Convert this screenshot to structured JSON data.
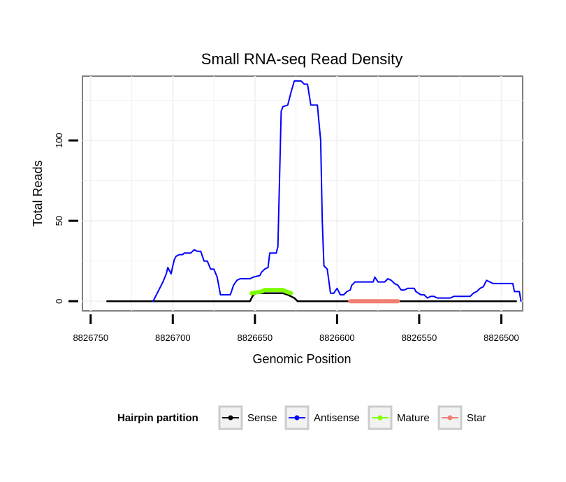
{
  "chart_data": {
    "type": "line",
    "title": "Small RNA-seq Read Density",
    "xlabel": "Genomic Position",
    "ylabel": "Total Reads",
    "xlim": [
      8826755,
      8826487
    ],
    "x_reversed": true,
    "ylim": [
      -6,
      140
    ],
    "x_ticks": [
      8826750,
      8826700,
      8826650,
      8826600,
      8826550,
      8826500
    ],
    "x_tick_labels": [
      "8826750",
      "8826700",
      "8826650",
      "8826600",
      "8826550",
      "8826500"
    ],
    "y_ticks": [
      0,
      50,
      100
    ],
    "y_tick_labels": [
      "0",
      "50",
      "100"
    ],
    "grid": true,
    "legend": {
      "title": "Hairpin partition",
      "position": "bottom",
      "entries": [
        {
          "name": "Sense",
          "color": "#000000"
        },
        {
          "name": "Antisense",
          "color": "#0000ff"
        },
        {
          "name": "Mature",
          "color": "#7fff00"
        },
        {
          "name": "Star",
          "color": "#f08070"
        }
      ]
    },
    "series": [
      {
        "name": "Sense",
        "color": "#000000",
        "width": 2.5,
        "points": [
          [
            8826740,
            0
          ],
          [
            8826653,
            0
          ],
          [
            8826652,
            2
          ],
          [
            8826651,
            4
          ],
          [
            8826649,
            5
          ],
          [
            8826633,
            5
          ],
          [
            8826630,
            4
          ],
          [
            8826626,
            2
          ],
          [
            8826624,
            0
          ],
          [
            8826491,
            0
          ]
        ]
      },
      {
        "name": "Antisense",
        "color": "#0000ff",
        "width": 2,
        "points": [
          [
            8826712,
            0
          ],
          [
            8826710,
            4
          ],
          [
            8826708,
            8
          ],
          [
            8826706,
            12
          ],
          [
            8826704,
            17
          ],
          [
            8826703,
            21
          ],
          [
            8826701,
            17
          ],
          [
            8826700,
            22
          ],
          [
            8826699,
            26
          ],
          [
            8826698,
            28
          ],
          [
            8826696,
            29
          ],
          [
            8826694,
            29
          ],
          [
            8826693,
            30
          ],
          [
            8826689,
            30
          ],
          [
            8826687,
            32
          ],
          [
            8826685,
            31
          ],
          [
            8826683,
            31
          ],
          [
            8826681,
            25
          ],
          [
            8826679,
            25
          ],
          [
            8826677,
            20
          ],
          [
            8826675,
            20
          ],
          [
            8826673,
            15
          ],
          [
            8826671,
            4
          ],
          [
            8826665,
            4
          ],
          [
            8826663,
            10
          ],
          [
            8826661,
            13
          ],
          [
            8826659,
            14
          ],
          [
            8826653,
            14
          ],
          [
            8826651,
            15
          ],
          [
            8826647,
            16
          ],
          [
            8826646,
            18
          ],
          [
            8826644,
            20
          ],
          [
            8826642,
            21
          ],
          [
            8826641,
            30
          ],
          [
            8826637,
            30
          ],
          [
            8826636,
            34
          ],
          [
            8826634,
            118
          ],
          [
            8826633,
            121
          ],
          [
            8826630,
            122
          ],
          [
            8826628,
            130
          ],
          [
            8826626,
            137
          ],
          [
            8826622,
            137
          ],
          [
            8826620,
            135
          ],
          [
            8826618,
            135
          ],
          [
            8826616,
            122
          ],
          [
            8826612,
            122
          ],
          [
            8826610,
            100
          ],
          [
            8826609,
            50
          ],
          [
            8826608,
            22
          ],
          [
            8826606,
            20
          ],
          [
            8826604,
            5
          ],
          [
            8826602,
            5
          ],
          [
            8826600,
            8
          ],
          [
            8826598,
            4
          ],
          [
            8826596,
            4
          ],
          [
            8826594,
            6
          ],
          [
            8826592,
            7
          ],
          [
            8826591,
            10
          ],
          [
            8826589,
            12
          ],
          [
            8826585,
            12
          ],
          [
            8826583,
            12
          ],
          [
            8826578,
            12
          ],
          [
            8826577,
            15
          ],
          [
            8826575,
            12
          ],
          [
            8826573,
            12
          ],
          [
            8826571,
            12
          ],
          [
            8826569,
            14
          ],
          [
            8826567,
            13
          ],
          [
            8826565,
            11
          ],
          [
            8826563,
            10
          ],
          [
            8826561,
            7
          ],
          [
            8826559,
            7
          ],
          [
            8826557,
            8
          ],
          [
            8826553,
            8
          ],
          [
            8826552,
            6
          ],
          [
            8826549,
            4
          ],
          [
            8826547,
            4
          ],
          [
            8826545,
            2
          ],
          [
            8826543,
            3
          ],
          [
            8826541,
            3
          ],
          [
            8826539,
            2
          ],
          [
            8826531,
            2
          ],
          [
            8826529,
            3
          ],
          [
            8826519,
            3
          ],
          [
            8826517,
            5
          ],
          [
            8826515,
            6
          ],
          [
            8826513,
            8
          ],
          [
            8826511,
            9
          ],
          [
            8826509,
            13
          ],
          [
            8826507,
            12
          ],
          [
            8826505,
            11
          ],
          [
            8826493,
            11
          ],
          [
            8826492,
            6
          ],
          [
            8826489,
            6
          ],
          [
            8826488,
            0
          ]
        ]
      },
      {
        "name": "Mature",
        "color": "#7fff00",
        "width": 6,
        "points": [
          [
            8826652,
            5
          ],
          [
            8826646,
            6
          ],
          [
            8826644,
            7
          ],
          [
            8826633,
            7
          ],
          [
            8826631,
            6
          ],
          [
            8826628,
            5
          ]
        ]
      },
      {
        "name": "Star",
        "color": "#f08070",
        "width": 6,
        "points": [
          [
            8826592,
            0
          ],
          [
            8826563,
            0
          ]
        ]
      }
    ]
  }
}
